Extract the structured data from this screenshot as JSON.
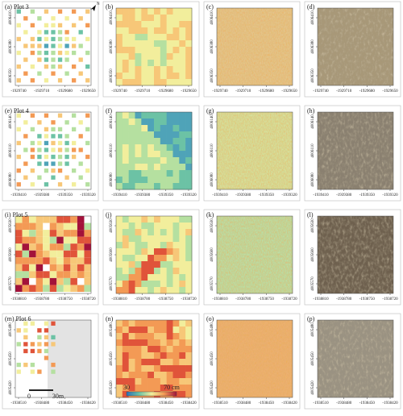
{
  "rows": [
    {
      "panels": [
        "(a) Plot 3",
        "(b)",
        "(c)",
        "(d)"
      ],
      "xticks": [
        "-1929740",
        "-1929710",
        "-1929680",
        "-1929650"
      ],
      "yticks": [
        "4006410",
        "4006380",
        "4006350"
      ]
    },
    {
      "panels": [
        "(e) Plot 4",
        "(f)",
        "(g)",
        "(h)"
      ],
      "xticks": [
        "-1939410",
        "-1939380",
        "-1939350",
        "-1939320"
      ],
      "yticks": [
        "4006140",
        "4006110",
        "4006080"
      ]
    },
    {
      "panels": [
        "(i) Plot 5",
        "(j)",
        "(k)",
        "(l)"
      ],
      "xticks": [
        "-1938810",
        "-1938780",
        "-1938750",
        "-1938720"
      ],
      "yticks": [
        "4005630",
        "4005600",
        "4005570"
      ]
    },
    {
      "panels": [
        "(m) Plot 6",
        "(n)",
        "(o)",
        "(p)"
      ],
      "xticks": [
        "-1938510",
        "-1938480",
        "-1938450",
        "-1938420"
      ],
      "yticks": [
        "4005480",
        "4005450",
        "4005420"
      ]
    }
  ],
  "north": "N",
  "scale_bar": {
    "start": "0",
    "end": "30m"
  },
  "colorbar": {
    "min": "30",
    "max": "70 cm"
  }
}
